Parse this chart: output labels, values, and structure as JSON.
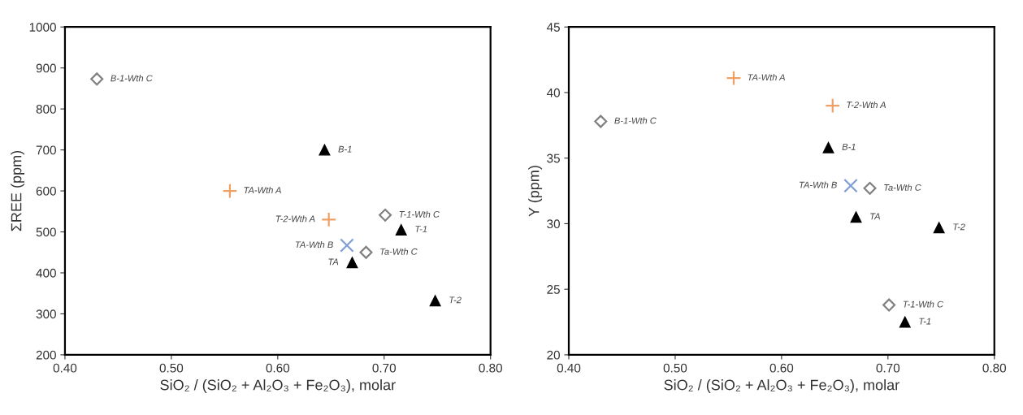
{
  "chart_data": [
    {
      "type": "scatter",
      "xlabel": "SiO₂ / (SiO₂ + Al₂O₃ + Fe₂O₃), molar",
      "ylabel": "ΣREE (ppm)",
      "xlim": [
        0.4,
        0.8
      ],
      "xticks": [
        {
          "value": 0.4,
          "label": "0.40"
        },
        {
          "value": 0.5,
          "label": "0.50"
        },
        {
          "value": 0.6,
          "label": "0.60"
        },
        {
          "value": 0.7,
          "label": "0.70"
        },
        {
          "value": 0.8,
          "label": "0.80"
        }
      ],
      "ylim": [
        200,
        1000
      ],
      "yticks": [
        200,
        300,
        400,
        500,
        600,
        700,
        800,
        900,
        1000
      ],
      "grid": false,
      "legend": false,
      "series": [
        {
          "marker": "triangle",
          "color": "#000000",
          "x": [
            0.644,
            0.716,
            0.67,
            0.748
          ],
          "values": [
            700,
            505,
            425,
            332
          ]
        },
        {
          "marker": "plus",
          "color": "#f0a064",
          "x": [
            0.555,
            0.648
          ],
          "values": [
            600,
            530
          ]
        },
        {
          "marker": "cross",
          "color": "#7f9fd4",
          "x": [
            0.665
          ],
          "values": [
            467
          ]
        },
        {
          "marker": "diamond",
          "color": "#808080",
          "x": [
            0.43,
            0.701,
            0.683
          ],
          "values": [
            873,
            541,
            450
          ]
        }
      ],
      "annotations": [
        {
          "text": "B-1",
          "x": 0.644,
          "y": 700
        },
        {
          "text": "T-1",
          "x": 0.716,
          "y": 505
        },
        {
          "text": "TA",
          "x": 0.67,
          "y": 425
        },
        {
          "text": "T-2",
          "x": 0.748,
          "y": 332
        },
        {
          "text": "TA-Wth A",
          "x": 0.555,
          "y": 600
        },
        {
          "text": "T-2-Wth A",
          "x": 0.648,
          "y": 530
        },
        {
          "text": "TA-Wth B",
          "x": 0.665,
          "y": 467
        },
        {
          "text": "B-1-Wth C",
          "x": 0.43,
          "y": 873
        },
        {
          "text": "T-1-Wth C",
          "x": 0.701,
          "y": 541
        },
        {
          "text": "Ta-Wth C",
          "x": 0.683,
          "y": 450
        }
      ]
    },
    {
      "type": "scatter",
      "xlabel": "SiO₂ / (SiO₂ + Al₂O₃ + Fe₂O₃), molar",
      "ylabel": "Y (ppm)",
      "xlim": [
        0.4,
        0.8
      ],
      "xticks": [
        {
          "value": 0.4,
          "label": "0.40"
        },
        {
          "value": 0.5,
          "label": "0.50"
        },
        {
          "value": 0.6,
          "label": "0.60"
        },
        {
          "value": 0.7,
          "label": "0.70"
        },
        {
          "value": 0.8,
          "label": "0.80"
        }
      ],
      "ylim": [
        20,
        45
      ],
      "yticks": [
        20,
        25,
        30,
        35,
        40,
        45
      ],
      "grid": false,
      "legend": false,
      "series": [
        {
          "marker": "triangle",
          "color": "#000000",
          "x": [
            0.644,
            0.716,
            0.67,
            0.748
          ],
          "values": [
            35.8,
            22.5,
            30.5,
            29.7
          ]
        },
        {
          "marker": "plus",
          "color": "#f0a064",
          "x": [
            0.555,
            0.648
          ],
          "values": [
            41.1,
            39.0
          ]
        },
        {
          "marker": "cross",
          "color": "#7f9fd4",
          "x": [
            0.665
          ],
          "values": [
            32.9
          ]
        },
        {
          "marker": "diamond",
          "color": "#808080",
          "x": [
            0.43,
            0.701,
            0.683
          ],
          "values": [
            37.8,
            23.8,
            32.7
          ]
        }
      ],
      "annotations": [
        {
          "text": "B-1",
          "x": 0.644,
          "y": 35.8
        },
        {
          "text": "T-1",
          "x": 0.716,
          "y": 22.5
        },
        {
          "text": "TA",
          "x": 0.67,
          "y": 30.5
        },
        {
          "text": "T-2",
          "x": 0.748,
          "y": 29.7
        },
        {
          "text": "TA-Wth A",
          "x": 0.555,
          "y": 41.1
        },
        {
          "text": "T-2-Wth A",
          "x": 0.648,
          "y": 39.0
        },
        {
          "text": "TA-Wth B",
          "x": 0.665,
          "y": 32.9
        },
        {
          "text": "B-1-Wth C",
          "x": 0.43,
          "y": 37.8
        },
        {
          "text": "T-1-Wth C",
          "x": 0.701,
          "y": 23.8
        },
        {
          "text": "Ta-Wth C",
          "x": 0.683,
          "y": 32.7
        }
      ]
    }
  ]
}
